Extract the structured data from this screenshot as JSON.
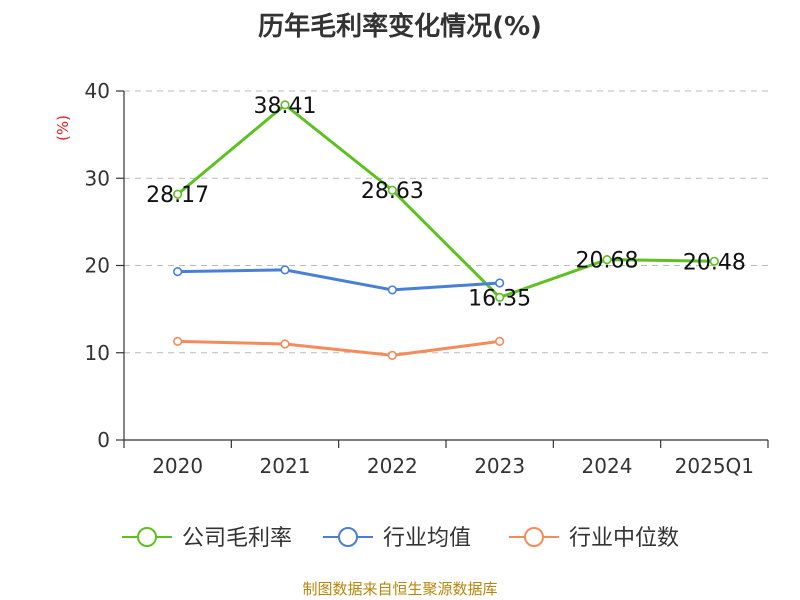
{
  "chart_data": {
    "type": "line",
    "title": "历年毛利率变化情况(%)",
    "ylabel": "(%)",
    "xlabel": "",
    "categories": [
      "2020",
      "2021",
      "2022",
      "2023",
      "2024",
      "2025Q1"
    ],
    "ylim": [
      0,
      40
    ],
    "yticks": [
      "0",
      "10",
      "20",
      "30",
      "40"
    ],
    "grid": "dashed horizontal",
    "legend_position": "bottom",
    "series": [
      {
        "name": "公司毛利率",
        "color": "#5cc121",
        "values": [
          28.17,
          38.41,
          28.63,
          16.35,
          20.68,
          20.48
        ],
        "labels": [
          "28.17",
          "38.41",
          "28.63",
          "16.35",
          "20.68",
          "20.48"
        ]
      },
      {
        "name": "行业均值",
        "color": "#4a7fd8",
        "values": [
          19.3,
          19.5,
          17.2,
          18.0,
          null,
          null
        ]
      },
      {
        "name": "行业中位数",
        "color": "#f48b5a",
        "values": [
          11.3,
          11.0,
          9.7,
          11.3,
          null,
          null
        ]
      }
    ]
  },
  "source": "制图数据来自恒生聚源数据库"
}
